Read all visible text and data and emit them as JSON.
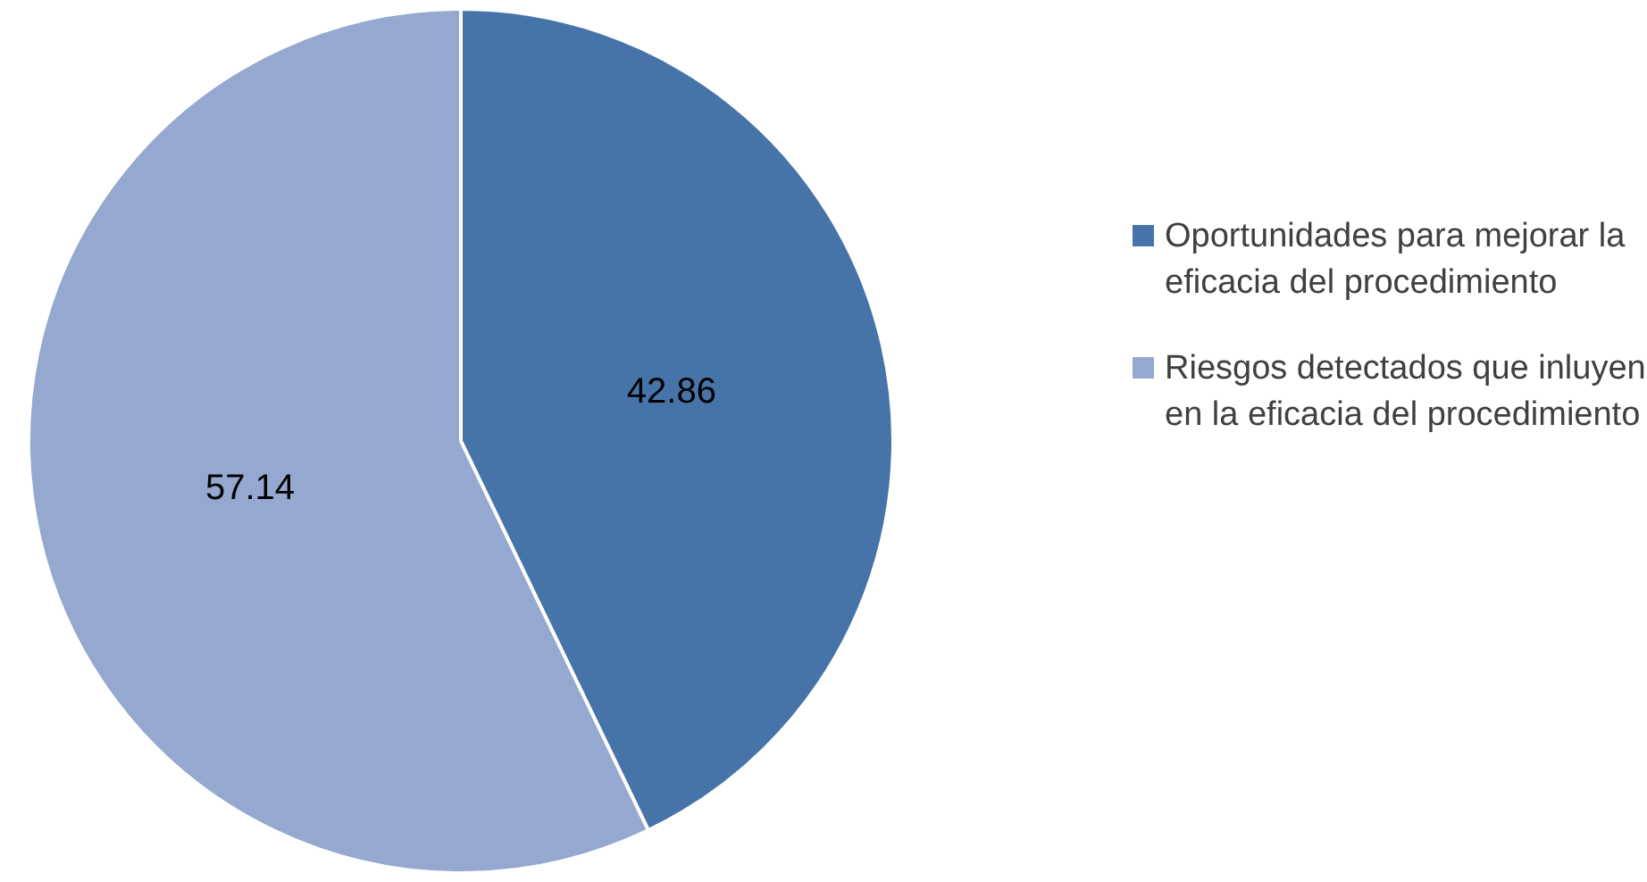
{
  "chart_data": {
    "type": "pie",
    "categories": [
      "Oportunidades para mejorar la eficacia del procedimiento",
      "Riesgos detectados que inluyen en la eficacia del procedimiento"
    ],
    "values": [
      42.86,
      57.14
    ],
    "colors": [
      "#4674a8",
      "#94a8d0"
    ],
    "data_labels": true,
    "legend": "right"
  }
}
